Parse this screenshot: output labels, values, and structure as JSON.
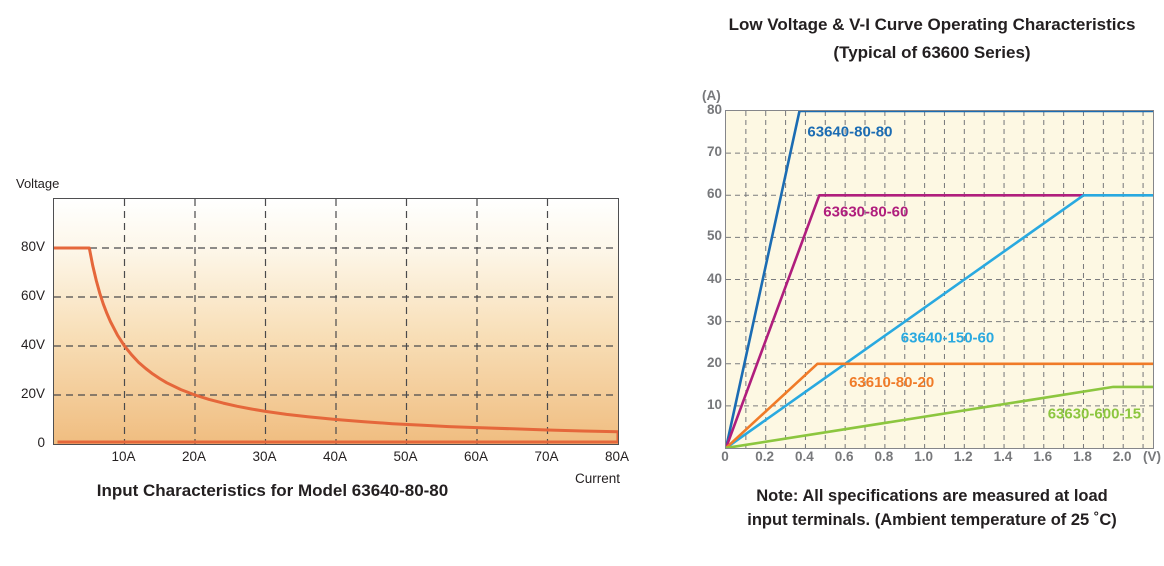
{
  "accent_colors": {
    "left_curve_orange": "#E5673B",
    "blue": "#1B6CB3",
    "magenta": "#B01E7D",
    "cyan": "#29A9E0",
    "orange": "#F07B28",
    "green": "#8CC63F",
    "axis_gray": "#77787B",
    "right_plot_bg": "#FDF8E3"
  },
  "chart_data": [
    {
      "id": "input-characteristics",
      "type": "line",
      "title": "Input Characteristics for Model 63640-80-80",
      "xlabel": "Current",
      "ylabel": "Voltage",
      "xlim": [
        0,
        80
      ],
      "ylim": [
        0,
        100
      ],
      "x_ticks": [
        {
          "value": 10,
          "label": "10A"
        },
        {
          "value": 20,
          "label": "20A"
        },
        {
          "value": 30,
          "label": "30A"
        },
        {
          "value": 40,
          "label": "40A"
        },
        {
          "value": 50,
          "label": "50A"
        },
        {
          "value": 60,
          "label": "60A"
        },
        {
          "value": 70,
          "label": "70A"
        },
        {
          "value": 80,
          "label": "80A"
        }
      ],
      "y_ticks": [
        {
          "value": 80,
          "label": "80V"
        },
        {
          "value": 60,
          "label": "60V"
        },
        {
          "value": 40,
          "label": "40V"
        },
        {
          "value": 20,
          "label": "20V"
        },
        {
          "value": 0,
          "label": "0"
        }
      ],
      "grid": {
        "x_values": [
          10,
          20,
          30,
          40,
          50,
          60,
          70
        ],
        "y_values": [
          20,
          40,
          60,
          80
        ]
      },
      "plot_bg_gradient": [
        "#FFFFFF",
        "#FDF7EA",
        "#F8DFB8",
        "#F0BD80"
      ],
      "series": [
        {
          "name": "63640-80-80",
          "color": "#E5673B",
          "width": 3,
          "description": "80 V limit up to 5 A, then constant-power 400 W curve (V = 400/I) down to 5 V at 80 A, closed along the 80 A and 0 V edges",
          "points": [
            [
              0,
              80
            ],
            [
              4.6,
              80
            ],
            [
              5,
              80
            ],
            [
              5.5,
              72.7
            ],
            [
              6,
              66.7
            ],
            [
              6.5,
              61.5
            ],
            [
              7,
              57.1
            ],
            [
              7.5,
              53.3
            ],
            [
              8,
              50
            ],
            [
              9,
              44.4
            ],
            [
              10,
              40
            ],
            [
              11,
              36.4
            ],
            [
              12,
              33.3
            ],
            [
              13,
              30.8
            ],
            [
              14,
              28.6
            ],
            [
              15,
              26.7
            ],
            [
              16,
              25
            ],
            [
              18,
              22.2
            ],
            [
              20,
              20
            ],
            [
              22,
              18.2
            ],
            [
              24,
              16.7
            ],
            [
              26,
              15.4
            ],
            [
              28,
              14.3
            ],
            [
              30,
              13.3
            ],
            [
              33,
              12.1
            ],
            [
              36,
              11.1
            ],
            [
              40,
              10
            ],
            [
              44,
              9.1
            ],
            [
              48,
              8.3
            ],
            [
              52,
              7.7
            ],
            [
              56,
              7.1
            ],
            [
              60,
              6.7
            ],
            [
              65,
              6.2
            ],
            [
              70,
              5.7
            ],
            [
              75,
              5.3
            ],
            [
              80,
              5
            ],
            [
              80,
              0.8
            ],
            [
              0.5,
              0.8
            ]
          ]
        }
      ]
    },
    {
      "id": "low-voltage-vi-curve",
      "type": "line",
      "title": "Low Voltage & V-I Curve Operating Characteristics",
      "subtitle": "(Typical of 63600 Series)",
      "xlabel": "(V)",
      "ylabel": "(A)",
      "note": [
        "Note: All specifications are measured at load",
        "input terminals. (Ambient temperature of 25 ˚C)"
      ],
      "xlim": [
        0,
        2.15
      ],
      "ylim": [
        0,
        80
      ],
      "x_ticks": [
        {
          "value": 0,
          "label": "0"
        },
        {
          "value": 0.2,
          "label": "0.2"
        },
        {
          "value": 0.4,
          "label": "0.4"
        },
        {
          "value": 0.6,
          "label": "0.6"
        },
        {
          "value": 0.8,
          "label": "0.8"
        },
        {
          "value": 1.0,
          "label": "1.0"
        },
        {
          "value": 1.2,
          "label": "1.2"
        },
        {
          "value": 1.4,
          "label": "1.4"
        },
        {
          "value": 1.6,
          "label": "1.6"
        },
        {
          "value": 1.8,
          "label": "1.8"
        },
        {
          "value": 2.0,
          "label": "2.0"
        }
      ],
      "y_ticks": [
        {
          "value": 80,
          "label": "80"
        },
        {
          "value": 70,
          "label": "70"
        },
        {
          "value": 60,
          "label": "60"
        },
        {
          "value": 50,
          "label": "50"
        },
        {
          "value": 40,
          "label": "40"
        },
        {
          "value": 30,
          "label": "30"
        },
        {
          "value": 20,
          "label": "20"
        },
        {
          "value": 10,
          "label": "10"
        }
      ],
      "grid": {
        "x_values": [
          0.1,
          0.2,
          0.3,
          0.4,
          0.5,
          0.6,
          0.7,
          0.8,
          0.9,
          1.0,
          1.1,
          1.2,
          1.3,
          1.4,
          1.5,
          1.6,
          1.7,
          1.8,
          1.9,
          2.0,
          2.1
        ],
        "y_values": [
          10,
          20,
          30,
          40,
          50,
          60,
          70
        ]
      },
      "plot_bg": "#FDF8E3",
      "series": [
        {
          "name": "63640-80-80",
          "color": "#1B6CB3",
          "width": 2.6,
          "points": [
            [
              0,
              0
            ],
            [
              0.37,
              80
            ],
            [
              2.15,
              80
            ]
          ],
          "label_pos": [
            0.41,
            74
          ]
        },
        {
          "name": "63630-80-60",
          "color": "#B01E7D",
          "width": 2.6,
          "points": [
            [
              0,
              0
            ],
            [
              0.47,
              60
            ],
            [
              1.8,
              60
            ]
          ],
          "label_pos": [
            0.49,
            55
          ]
        },
        {
          "name": "63640-150-60",
          "color": "#29A9E0",
          "width": 2.6,
          "points": [
            [
              0,
              0
            ],
            [
              1.8,
              60
            ],
            [
              2.15,
              60
            ]
          ],
          "label_pos": [
            0.88,
            25
          ]
        },
        {
          "name": "63610-80-20",
          "color": "#F07B28",
          "width": 2.6,
          "points": [
            [
              0,
              0
            ],
            [
              0.46,
              20
            ],
            [
              2.15,
              20
            ]
          ],
          "label_pos": [
            0.62,
            14.5
          ]
        },
        {
          "name": "63630-600-15",
          "color": "#8CC63F",
          "width": 2.6,
          "points": [
            [
              0,
              0
            ],
            [
              1.95,
              14.5
            ],
            [
              2.15,
              14.5
            ]
          ],
          "label_pos": [
            1.62,
            7
          ]
        }
      ]
    }
  ]
}
